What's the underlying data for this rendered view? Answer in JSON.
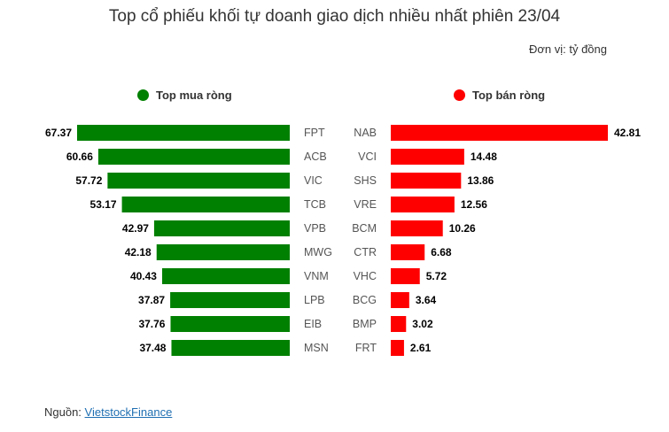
{
  "title": "Top cổ phiếu khối tự doanh giao dịch nhiều nhất phiên 23/04",
  "unit": "Đơn vị: tỷ đồng",
  "source_label": "Nguồn: ",
  "source_link": "VietstockFinance",
  "colors": {
    "buy": "#008000",
    "sell": "#ff0000"
  },
  "chart_data": [
    {
      "type": "bar",
      "orientation": "horizontal",
      "legend": "Top mua ròng",
      "categories": [
        "FPT",
        "ACB",
        "VIC",
        "TCB",
        "VPB",
        "MWG",
        "VNM",
        "LPB",
        "EIB",
        "MSN"
      ],
      "values": [
        67.37,
        60.66,
        57.72,
        53.17,
        42.97,
        42.18,
        40.43,
        37.87,
        37.76,
        37.48
      ]
    },
    {
      "type": "bar",
      "orientation": "horizontal",
      "legend": "Top bán ròng",
      "categories": [
        "NAB",
        "VCI",
        "SHS",
        "VRE",
        "BCM",
        "CTR",
        "VHC",
        "BCG",
        "BMP",
        "FRT"
      ],
      "values": [
        42.81,
        14.48,
        13.86,
        12.56,
        10.26,
        6.68,
        5.72,
        3.64,
        3.02,
        2.61
      ]
    }
  ]
}
